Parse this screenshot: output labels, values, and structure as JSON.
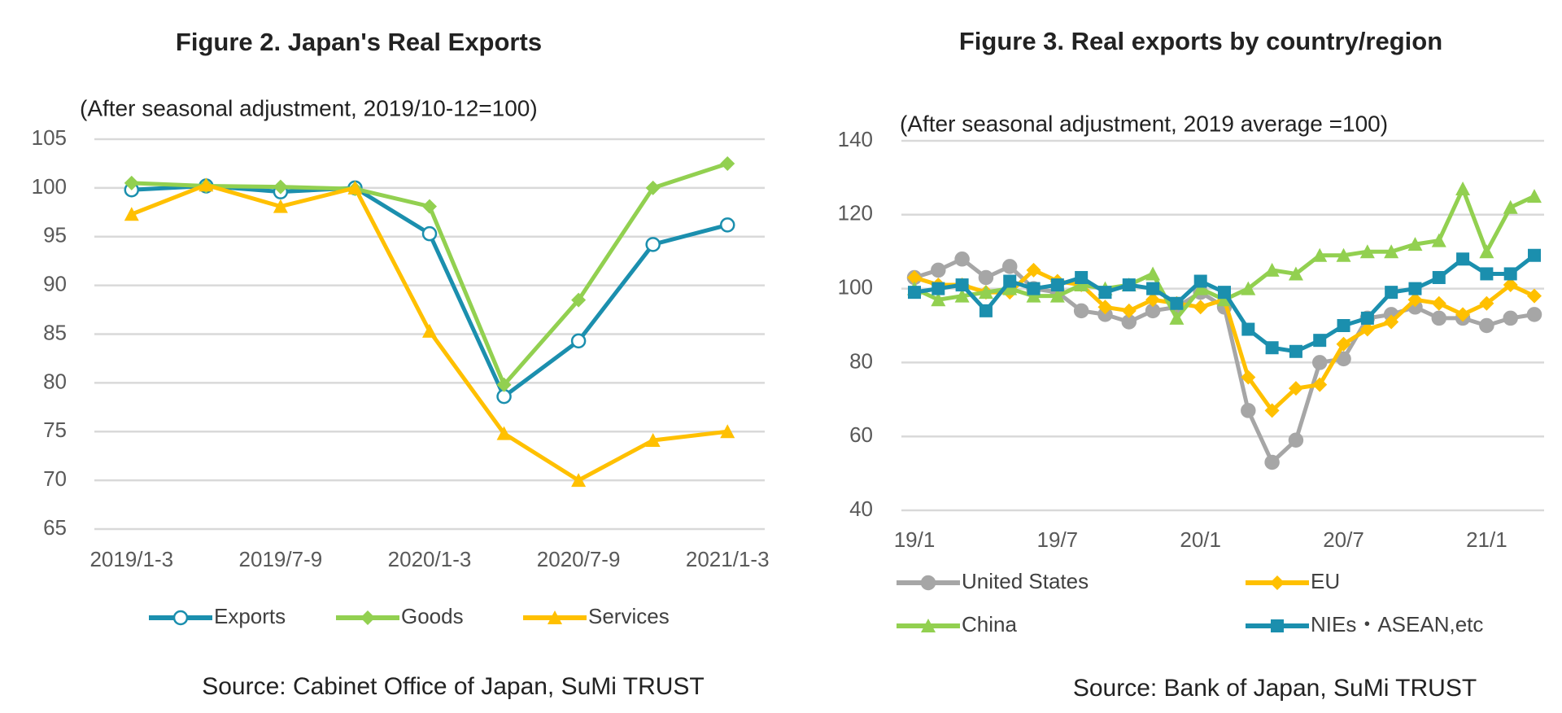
{
  "chart_data": [
    {
      "type": "line",
      "title": "Figure 2. Japan's Real Exports",
      "subtitle": "(After seasonal adjustment, 2019/10-12=100)",
      "source": "Source: Cabinet Office of Japan, SuMi TRUST",
      "categories": [
        "2019/1-3",
        null,
        "2019/7-9",
        null,
        "2020/1-3",
        null,
        "2020/7-9",
        null,
        "2021/1-3"
      ],
      "series": [
        {
          "name": "Exports",
          "color": "#1b8fae",
          "marker": "open-circle",
          "values": [
            99.8,
            100.2,
            99.6,
            100,
            95.3,
            78.6,
            84.3,
            94.2,
            96.2
          ]
        },
        {
          "name": "Goods",
          "color": "#92d050",
          "marker": "diamond",
          "values": [
            100.5,
            100.2,
            100.1,
            99.9,
            98.1,
            79.8,
            88.5,
            100,
            102.5
          ]
        },
        {
          "name": "Services",
          "color": "#ffc000",
          "marker": "triangle",
          "values": [
            97.3,
            100.3,
            98.1,
            100,
            85.3,
            74.8,
            70,
            74.1,
            75
          ]
        }
      ],
      "ylim": [
        65,
        105
      ],
      "yticks": [
        65,
        70,
        75,
        80,
        85,
        90,
        95,
        100,
        105
      ],
      "grid": true,
      "legend": "bottom"
    },
    {
      "type": "line",
      "title": "Figure 3. Real exports by country/region",
      "subtitle": "(After seasonal adjustment, 2019 average =100)",
      "source": "Source: Bank of Japan, SuMi TRUST",
      "categories": [
        "19/1",
        null,
        null,
        null,
        null,
        null,
        "19/7",
        null,
        null,
        null,
        null,
        null,
        "20/1",
        null,
        null,
        null,
        null,
        null,
        "20/7",
        null,
        null,
        null,
        null,
        null,
        "21/1",
        null,
        null
      ],
      "series": [
        {
          "name": "United States",
          "color": "#a6a6a6",
          "marker": "circle",
          "values": [
            103,
            105,
            108,
            103,
            106,
            100,
            99,
            94,
            93,
            91,
            94,
            95,
            99,
            95,
            67,
            53,
            59,
            80,
            81,
            92,
            93,
            95,
            92,
            92,
            90,
            92,
            93
          ]
        },
        {
          "name": "EU",
          "color": "#ffc000",
          "marker": "diamond",
          "values": [
            103,
            101,
            101,
            99,
            99,
            105,
            102,
            101,
            95,
            94,
            97,
            96,
            95,
            97,
            76,
            67,
            73,
            74,
            85,
            89,
            91,
            97,
            96,
            93,
            96,
            101,
            98
          ]
        },
        {
          "name": "China",
          "color": "#92d050",
          "marker": "triangle",
          "values": [
            100,
            97,
            98,
            99,
            100,
            98,
            98,
            101,
            100,
            101,
            104,
            92,
            100,
            97,
            100,
            105,
            104,
            109,
            109,
            110,
            110,
            112,
            113,
            127,
            110,
            122,
            125
          ]
        },
        {
          "name": "NIEs・ASEAN,etc",
          "color": "#1b8fae",
          "marker": "square",
          "values": [
            99,
            100,
            101,
            94,
            102,
            100,
            101,
            103,
            99,
            101,
            100,
            96,
            102,
            99,
            89,
            84,
            83,
            86,
            90,
            92,
            99,
            100,
            103,
            108,
            104,
            104,
            109
          ]
        }
      ],
      "ylim": [
        40,
        140
      ],
      "yticks": [
        40,
        60,
        80,
        100,
        120,
        140
      ],
      "grid": true,
      "legend": "bottom"
    }
  ]
}
